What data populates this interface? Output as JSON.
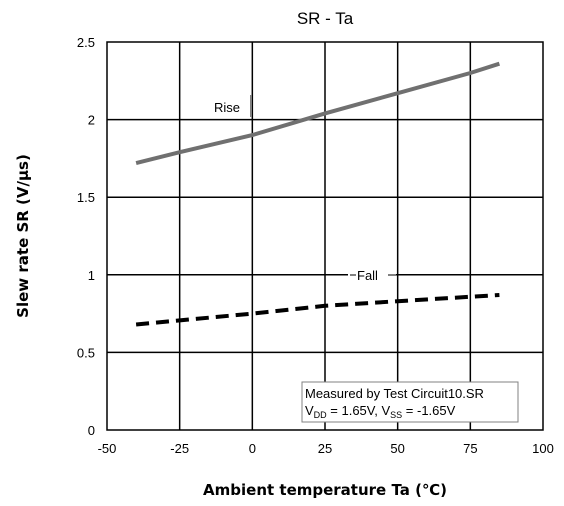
{
  "chart_data": {
    "type": "line",
    "title": "SR - Ta",
    "xlabel": "Ambient temperature Ta (℃)",
    "ylabel": "Slew rate SR (V/μs)",
    "xlim": [
      -50,
      100
    ],
    "ylim": [
      0,
      2.5
    ],
    "xticks": [
      "-50",
      "-25",
      "0",
      "25",
      "50",
      "75",
      "100"
    ],
    "yticks": [
      "0",
      "0.5",
      "1",
      "1.5",
      "2",
      "2.5"
    ],
    "grid": true,
    "series": [
      {
        "name": "Rise",
        "style": "solid",
        "color": "#707070",
        "points": [
          [
            -40,
            1.72
          ],
          [
            -25,
            1.79
          ],
          [
            0,
            1.9
          ],
          [
            25,
            2.04
          ],
          [
            50,
            2.17
          ],
          [
            75,
            2.3
          ],
          [
            85,
            2.36
          ]
        ]
      },
      {
        "name": "Fall",
        "style": "dashed",
        "color": "#000000",
        "points": [
          [
            -40,
            0.68
          ],
          [
            0,
            0.75
          ],
          [
            25,
            0.8
          ],
          [
            50,
            0.83
          ],
          [
            85,
            0.87
          ]
        ]
      }
    ],
    "annotation": {
      "line1": "Measured by Test Circuit10.SR",
      "vdd_main": "V",
      "vdd_sub": "DD",
      "vdd_value": " = 1.65V, V",
      "vss_sub": "SS",
      "vss_value": " = -1.65V"
    }
  }
}
